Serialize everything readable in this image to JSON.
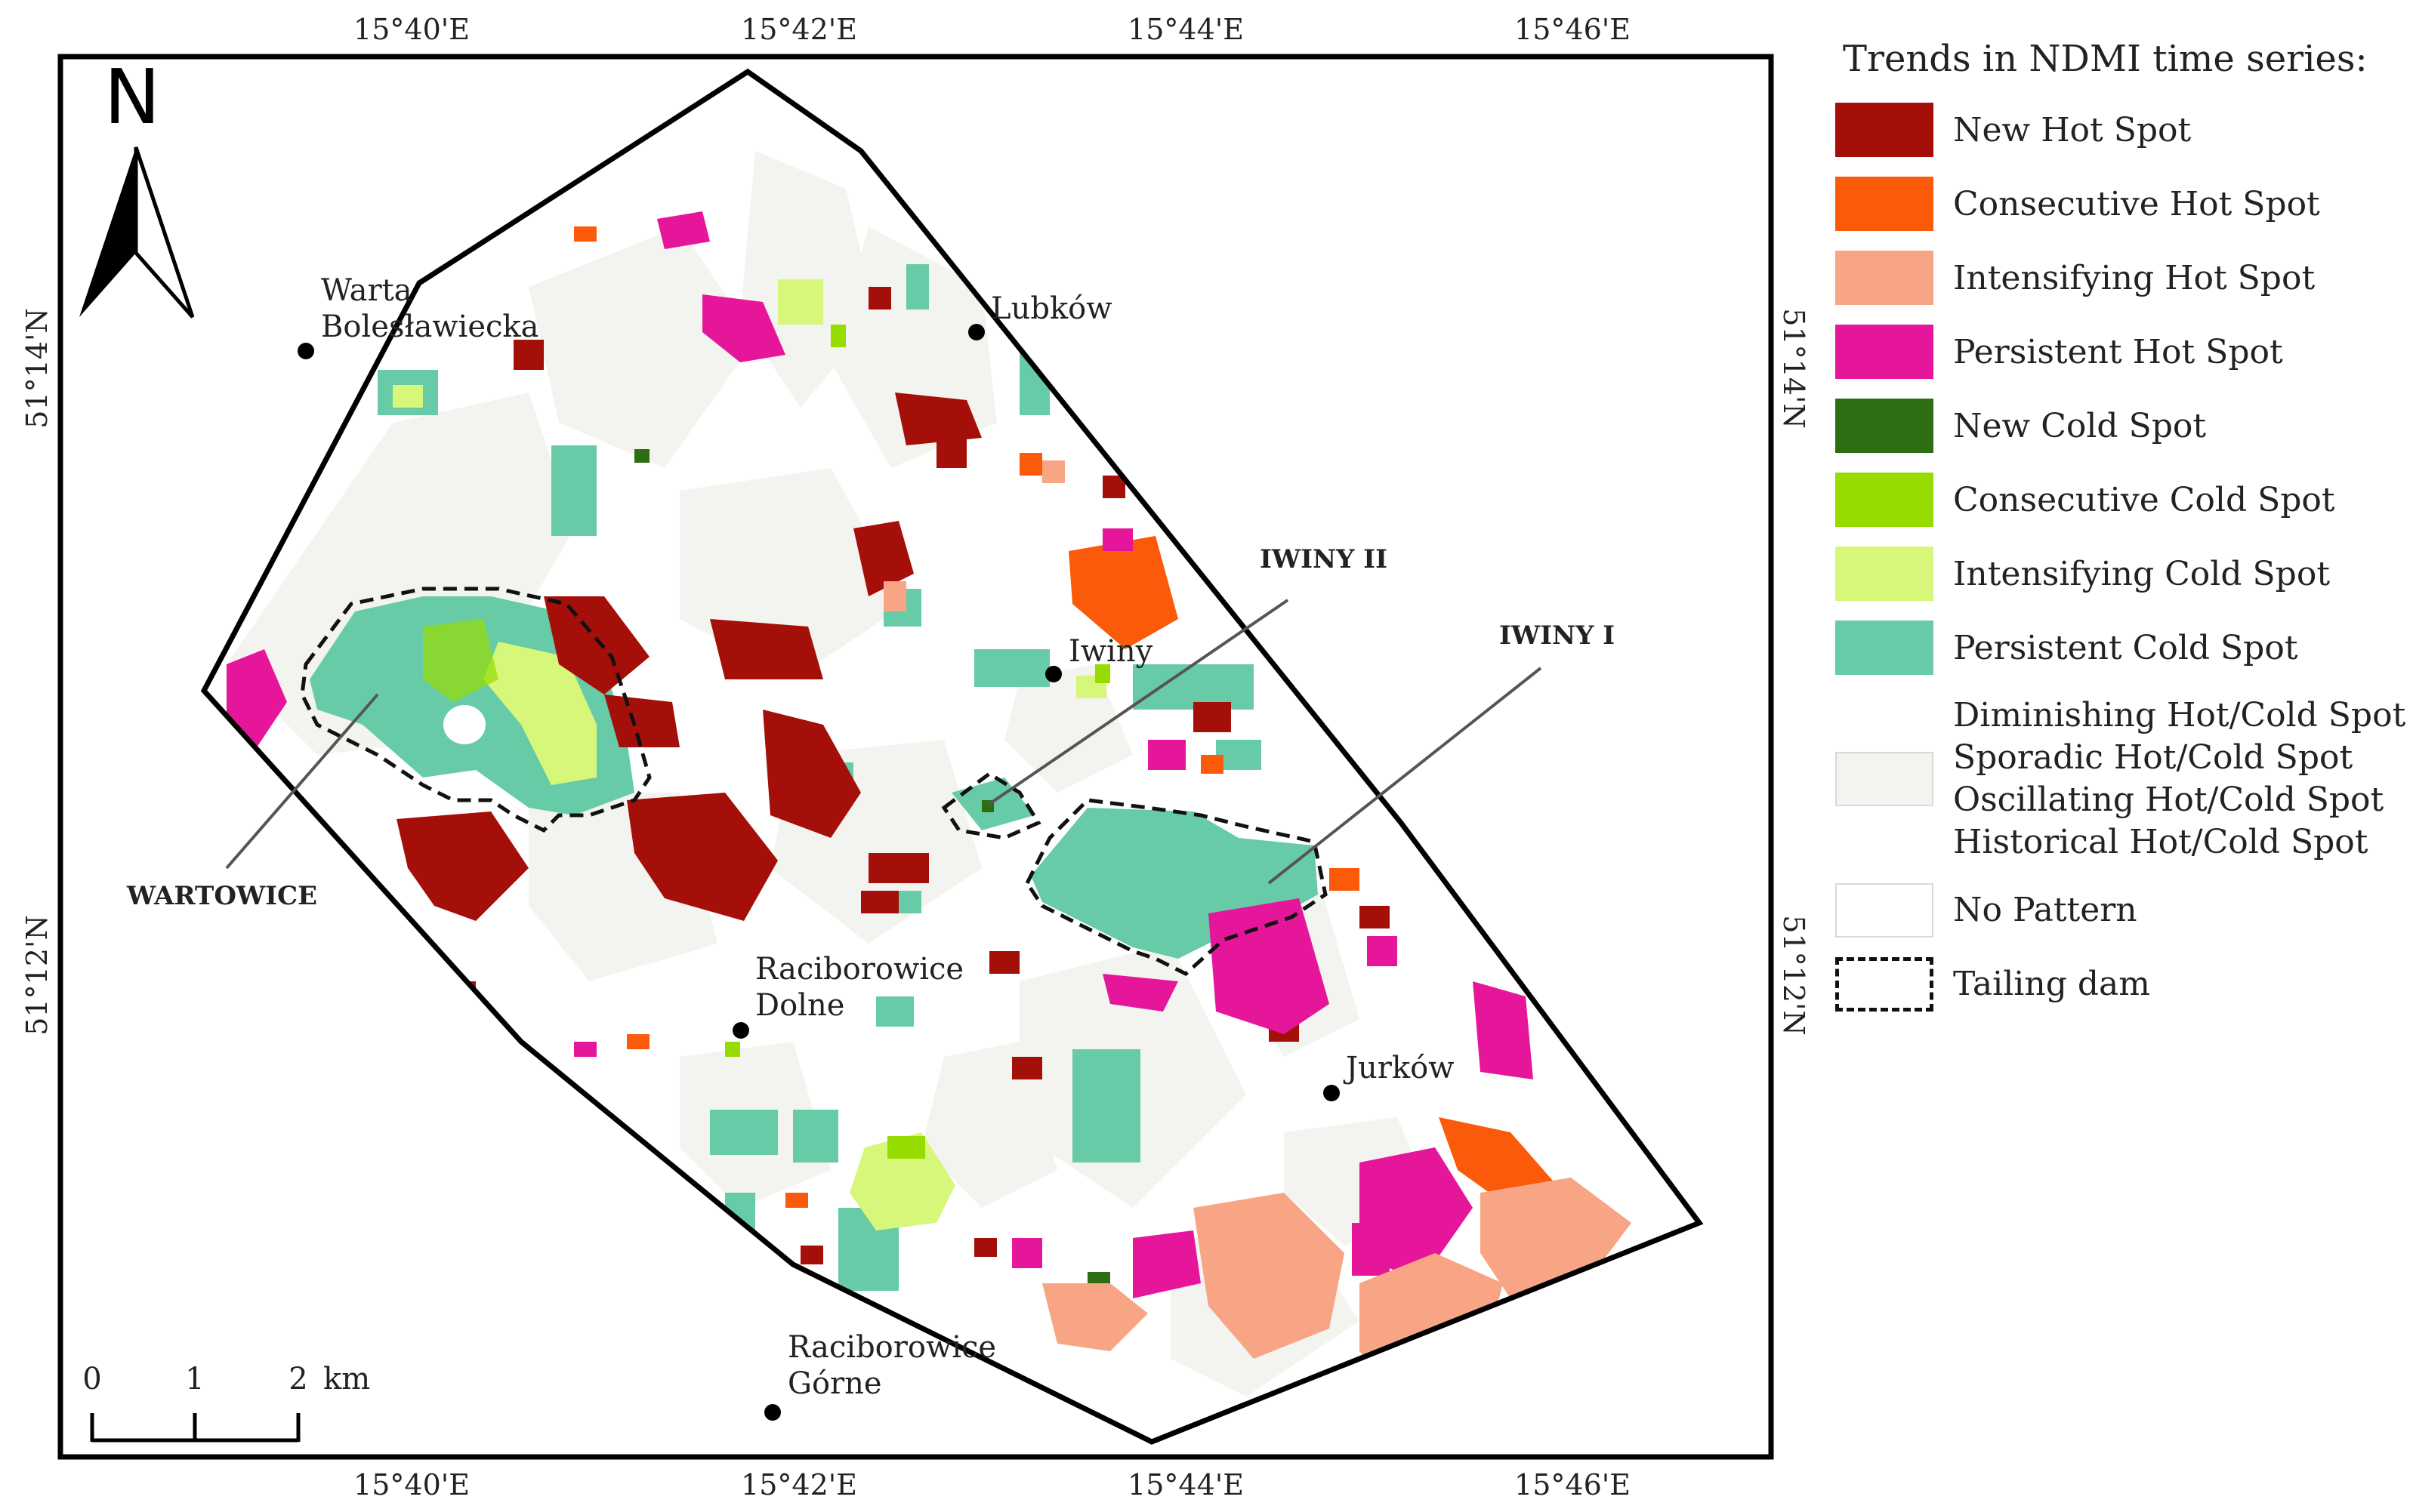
{
  "map": {
    "north_label": "N",
    "lon_labels": [
      "15°40'E",
      "15°42'E",
      "15°44'E",
      "15°46'E"
    ],
    "lat_labels": [
      "51°14'N",
      "51°12'N"
    ],
    "scale_bar": {
      "ticks": [
        "0",
        "1",
        "2"
      ],
      "unit": "km"
    },
    "places": [
      "Warta Bolesławiecka",
      "Lubków",
      "Iwiny",
      "Raciborowice Dolne",
      "Jurków",
      "Raciborowice Górne"
    ],
    "place_lines": {
      "warta": [
        "Warta",
        "Bolesławiecka"
      ],
      "raciborowice_dolne": [
        "Raciborowice",
        "Dolne"
      ],
      "raciborowice_gorne": [
        "Raciborowice",
        "Górne"
      ]
    },
    "tailing_dams": [
      "WARTOWICE",
      "IWINY II",
      "IWINY I"
    ]
  },
  "legend": {
    "title": "Trends in NDMI time series:",
    "items": [
      {
        "label": "New Hot Spot",
        "color": "#a50f0a"
      },
      {
        "label": "Consecutive Hot Spot",
        "color": "#fa5a0a"
      },
      {
        "label": "Intensifying Hot Spot",
        "color": "#f7a584"
      },
      {
        "label": "Persistent Hot Spot",
        "color": "#e6169b"
      },
      {
        "label": "New Cold Spot",
        "color": "#2e6e12"
      },
      {
        "label": "Consecutive Cold Spot",
        "color": "#96dc00"
      },
      {
        "label": "Intensifying Cold Spot",
        "color": "#d6f77a"
      },
      {
        "label": "Persistent Cold Spot",
        "color": "#68cba8"
      }
    ],
    "multi_item": {
      "lines": [
        "Diminishing Hot/Cold Spot",
        "Sporadic Hot/Cold Spot",
        "Oscillating Hot/Cold Spot",
        "Historical Hot/Cold Spot"
      ],
      "color": "#f3f3ef"
    },
    "no_pattern": {
      "label": "No Pattern",
      "color": "#ffffff"
    },
    "tailing_dam": {
      "label": "Tailing dam"
    }
  }
}
